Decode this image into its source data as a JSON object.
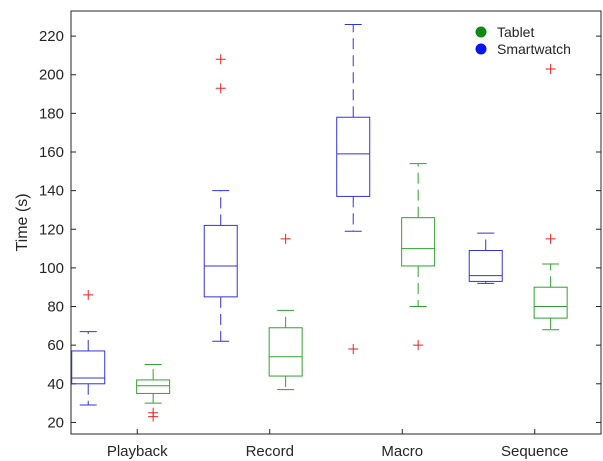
{
  "chart_data": {
    "type": "box",
    "title": "",
    "xlabel": "",
    "ylabel": "Time (s)",
    "ylim": [
      14,
      233
    ],
    "yticks": [
      20,
      40,
      60,
      80,
      100,
      120,
      140,
      160,
      180,
      200,
      220
    ],
    "categories": [
      "Playback",
      "Record",
      "Macro",
      "Sequence"
    ],
    "grid": false,
    "legend_position": "top-right",
    "series": [
      {
        "name": "Smartwatch",
        "color": "#3333dd",
        "boxes": [
          {
            "whisker_low": 29,
            "q1": 40,
            "median": 43,
            "q3": 57,
            "whisker_high": 67,
            "outliers": [
              86
            ]
          },
          {
            "whisker_low": 62,
            "q1": 85,
            "median": 101,
            "q3": 122,
            "whisker_high": 140,
            "outliers": [
              193,
              208
            ]
          },
          {
            "whisker_low": 119,
            "q1": 137,
            "median": 159,
            "q3": 178,
            "whisker_high": 226,
            "outliers": [
              58
            ]
          },
          {
            "whisker_low": 92,
            "q1": 93,
            "median": 96,
            "q3": 109,
            "whisker_high": 118,
            "outliers": []
          }
        ]
      },
      {
        "name": "Tablet",
        "color": "#33a033",
        "boxes": [
          {
            "whisker_low": 30,
            "q1": 35,
            "median": 39,
            "q3": 42,
            "whisker_high": 50,
            "outliers": [
              23,
              25
            ]
          },
          {
            "whisker_low": 37,
            "q1": 44,
            "median": 54,
            "q3": 69,
            "whisker_high": 78,
            "outliers": [
              115
            ]
          },
          {
            "whisker_low": 80,
            "q1": 101,
            "median": 110,
            "q3": 126,
            "whisker_high": 154,
            "outliers": [
              60
            ]
          },
          {
            "whisker_low": 68,
            "q1": 74,
            "median": 80,
            "q3": 90,
            "whisker_high": 102,
            "outliers": [
              115,
              203
            ]
          }
        ]
      }
    ],
    "legend": [
      {
        "label": "Tablet",
        "color": "#118811"
      },
      {
        "label": "Smartwatch",
        "color": "#0a14ee"
      }
    ],
    "outlier_color": "#ee2222"
  }
}
